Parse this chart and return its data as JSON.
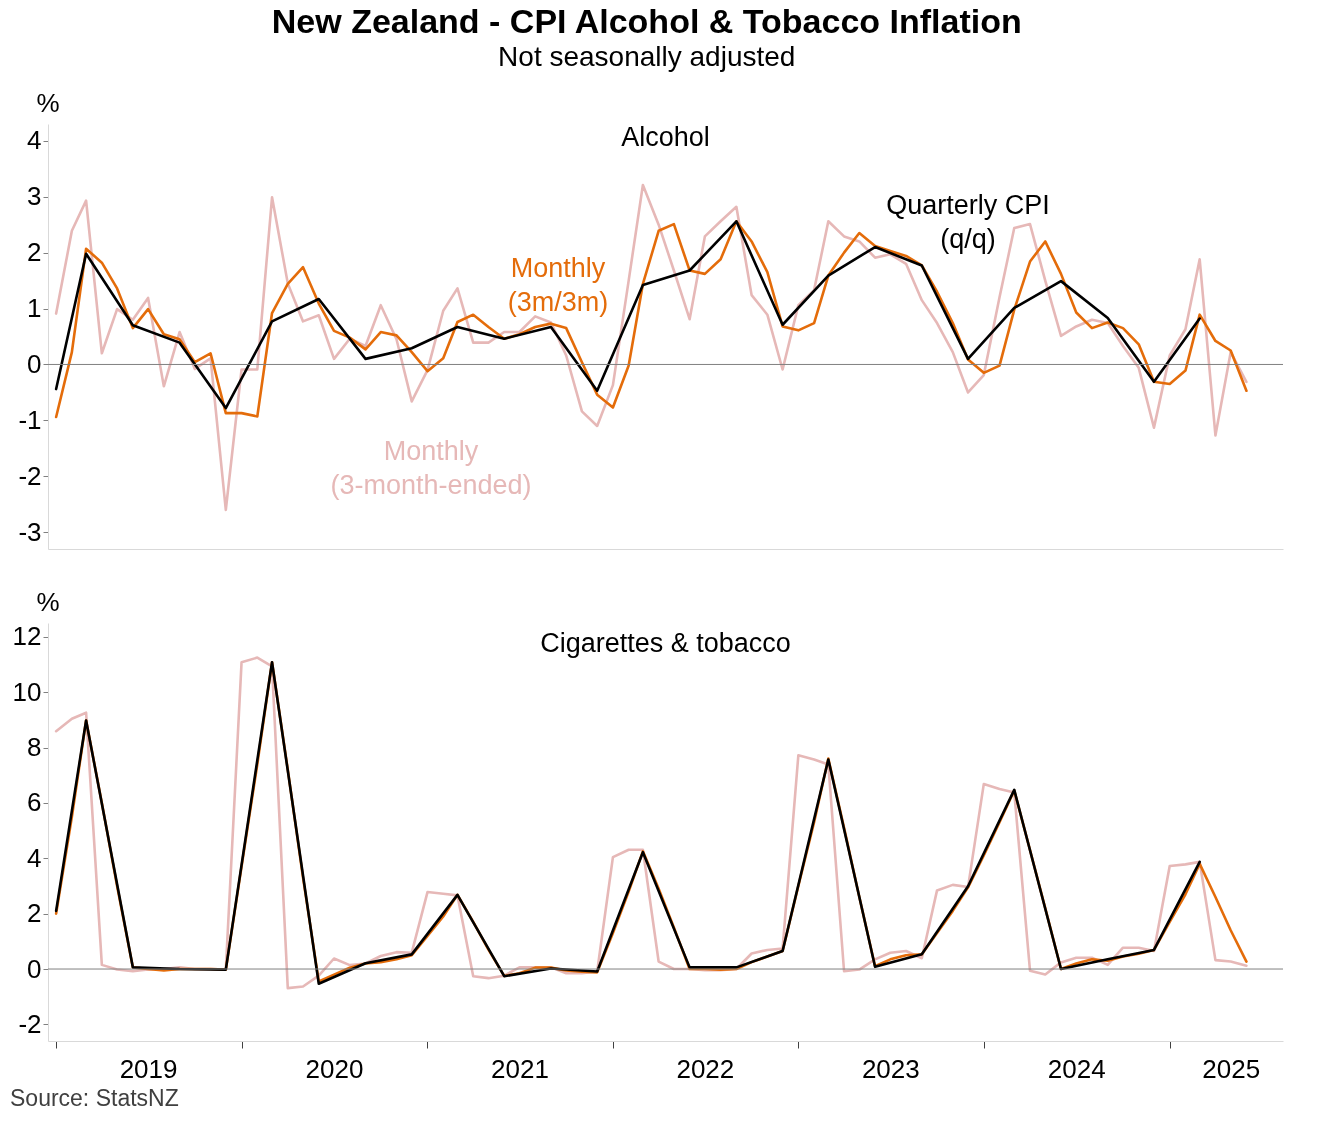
{
  "chart_data": [
    {
      "type": "line",
      "title": "New Zealand - CPI Alcohol & Tobacco Inflation",
      "subtitle": "Not seasonally adjusted",
      "ylabel": "%",
      "annotations": [
        "Alcohol"
      ],
      "tick_labels": "y",
      "xlim": [
        "2018-12-16",
        "2025-08-12"
      ],
      "ylim": [
        -3.3,
        4.3
      ],
      "yticks": [
        -3,
        -2,
        -1,
        0,
        1,
        2,
        3,
        4
      ],
      "ref_lines": [
        {
          "axis": "y",
          "value": 0,
          "color": "#808080"
        }
      ],
      "x": [
        "2019-01",
        "2019-02",
        "2019-03",
        "2019-04",
        "2019-05",
        "2019-06",
        "2019-07",
        "2019-08",
        "2019-09",
        "2019-10",
        "2019-11",
        "2019-12",
        "2020-01",
        "2020-02",
        "2020-03",
        "2020-04",
        "2020-05",
        "2020-06",
        "2020-07",
        "2020-08",
        "2020-09",
        "2020-10",
        "2020-11",
        "2020-12",
        "2021-01",
        "2021-02",
        "2021-03",
        "2021-04",
        "2021-05",
        "2021-06",
        "2021-07",
        "2021-08",
        "2021-09",
        "2021-10",
        "2021-11",
        "2021-12",
        "2022-01",
        "2022-02",
        "2022-03",
        "2022-04",
        "2022-05",
        "2022-06",
        "2022-07",
        "2022-08",
        "2022-09",
        "2022-10",
        "2022-11",
        "2022-12",
        "2023-01",
        "2023-02",
        "2023-03",
        "2023-04",
        "2023-05",
        "2023-06",
        "2023-07",
        "2023-08",
        "2023-09",
        "2023-10",
        "2023-11",
        "2023-12",
        "2024-01",
        "2024-02",
        "2024-03",
        "2024-04",
        "2024-05",
        "2024-06",
        "2024-07",
        "2024-08",
        "2024-09",
        "2024-10",
        "2024-11",
        "2024-12",
        "2025-01",
        "2025-02",
        "2025-03",
        "2025-04",
        "2025-05",
        "2025-06"
      ],
      "series": [
        {
          "name": "Monthly (3-month-ended)",
          "color": "#e6b8b7",
          "values": [
            0.91,
            2.39,
            2.93,
            0.2,
            0.99,
            0.8,
            1.19,
            -0.39,
            0.58,
            -0.08,
            0.11,
            -2.6,
            -0.09,
            -0.09,
            2.99,
            1.45,
            0.77,
            0.88,
            0.1,
            0.46,
            0.33,
            1.06,
            0.45,
            -0.66,
            -0.1,
            0.96,
            1.36,
            0.39,
            0.39,
            0.58,
            0.58,
            0.86,
            0.75,
            0.16,
            -0.84,
            -1.1,
            -0.37,
            1.5,
            3.21,
            2.5,
            1.68,
            0.81,
            2.29,
            2.56,
            2.82,
            1.24,
            0.89,
            -0.09,
            1.06,
            1.33,
            2.56,
            2.29,
            2.2,
            1.91,
            1.97,
            1.8,
            1.15,
            0.74,
            0.22,
            -0.5,
            -0.19,
            1.2,
            2.44,
            2.51,
            1.5,
            0.51,
            0.68,
            0.8,
            0.74,
            0.33,
            -0.06,
            -1.13,
            0.16,
            0.63,
            1.88,
            -1.27,
            0.22,
            -0.31
          ]
        },
        {
          "name": "Monthly (3m/3m)",
          "color": "#e46c0a",
          "values": [
            -0.94,
            0.22,
            2.07,
            1.82,
            1.36,
            0.65,
            0.99,
            0.54,
            0.45,
            0.04,
            0.2,
            -0.87,
            -0.87,
            -0.93,
            0.92,
            1.44,
            1.74,
            1.09,
            0.6,
            0.48,
            0.27,
            0.58,
            0.52,
            0.22,
            -0.12,
            0.11,
            0.76,
            0.89,
            0.67,
            0.46,
            0.54,
            0.67,
            0.73,
            0.65,
            0.04,
            -0.54,
            -0.77,
            -0.02,
            1.44,
            2.39,
            2.51,
            1.68,
            1.62,
            1.88,
            2.56,
            2.2,
            1.65,
            0.68,
            0.61,
            0.74,
            1.59,
            2.0,
            2.35,
            2.12,
            2.03,
            1.94,
            1.77,
            1.3,
            0.74,
            0.09,
            -0.15,
            -0.02,
            0.98,
            1.84,
            2.2,
            1.62,
            0.93,
            0.65,
            0.75,
            0.65,
            0.36,
            -0.31,
            -0.35,
            -0.11,
            0.89,
            0.42,
            0.25,
            -0.47
          ]
        },
        {
          "name": "Quarterly CPI (q/q)",
          "color": "#000000",
          "x": [
            "2019-01",
            "2019-03",
            "2019-06",
            "2019-09",
            "2019-12",
            "2020-03",
            "2020-06",
            "2020-09",
            "2020-12",
            "2021-03",
            "2021-06",
            "2021-09",
            "2021-12",
            "2022-03",
            "2022-06",
            "2022-09",
            "2022-12",
            "2023-03",
            "2023-06",
            "2023-09",
            "2023-12",
            "2024-03",
            "2024-06",
            "2024-09",
            "2024-12",
            "2025-03"
          ],
          "values": [
            -0.44,
            1.98,
            0.7,
            0.39,
            -0.78,
            0.77,
            1.17,
            0.1,
            0.29,
            0.67,
            0.46,
            0.67,
            -0.47,
            1.42,
            1.68,
            2.56,
            0.71,
            1.59,
            2.1,
            1.77,
            0.1,
            1.01,
            1.49,
            0.83,
            -0.31,
            0.82
          ]
        }
      ]
    },
    {
      "type": "line",
      "title": "Cigarettes & tobacco",
      "ylabel": "%",
      "annotations": [
        "Source: StatsNZ"
      ],
      "xlim": [
        "2018-12-16",
        "2025-08-12"
      ],
      "xticks": [
        {
          "value": "2019-01",
          "label": null
        },
        {
          "value": "2019-07",
          "label": "2019"
        },
        {
          "value": "2020-01",
          "label": null
        },
        {
          "value": "2020-07",
          "label": "2020"
        },
        {
          "value": "2021-01",
          "label": null
        },
        {
          "value": "2021-07",
          "label": "2021"
        },
        {
          "value": "2022-01",
          "label": null
        },
        {
          "value": "2022-07",
          "label": "2022"
        },
        {
          "value": "2023-01",
          "label": null
        },
        {
          "value": "2023-07",
          "label": "2023"
        },
        {
          "value": "2024-01",
          "label": null
        },
        {
          "value": "2024-07",
          "label": "2024"
        },
        {
          "value": "2025-01",
          "label": null
        },
        {
          "value": "2025-05",
          "label": "2025"
        }
      ],
      "ylim": [
        -2.6,
        12.5
      ],
      "yticks": [
        -2,
        0,
        2,
        4,
        6,
        8,
        10,
        12
      ],
      "ref_lines": [
        {
          "axis": "y",
          "value": 0,
          "color": "#808080"
        }
      ],
      "x": [
        "2019-01",
        "2019-02",
        "2019-03",
        "2019-04",
        "2019-05",
        "2019-06",
        "2019-07",
        "2019-08",
        "2019-09",
        "2019-10",
        "2019-11",
        "2019-12",
        "2020-01",
        "2020-02",
        "2020-03",
        "2020-04",
        "2020-05",
        "2020-06",
        "2020-07",
        "2020-08",
        "2020-09",
        "2020-10",
        "2020-11",
        "2020-12",
        "2021-01",
        "2021-02",
        "2021-03",
        "2021-04",
        "2021-05",
        "2021-06",
        "2021-07",
        "2021-08",
        "2021-09",
        "2021-10",
        "2021-11",
        "2021-12",
        "2022-01",
        "2022-02",
        "2022-03",
        "2022-04",
        "2022-05",
        "2022-06",
        "2022-07",
        "2022-08",
        "2022-09",
        "2022-10",
        "2022-11",
        "2022-12",
        "2023-01",
        "2023-02",
        "2023-03",
        "2023-04",
        "2023-05",
        "2023-06",
        "2023-07",
        "2023-08",
        "2023-09",
        "2023-10",
        "2023-11",
        "2023-12",
        "2024-01",
        "2024-02",
        "2024-03",
        "2024-04",
        "2024-05",
        "2024-06",
        "2024-07",
        "2024-08",
        "2024-09",
        "2024-10",
        "2024-11",
        "2024-12",
        "2025-01",
        "2025-02",
        "2025-03",
        "2025-04",
        "2025-05",
        "2025-06"
      ],
      "series": [
        {
          "color": "#e6b8b7",
          "values": [
            8.59,
            9.04,
            9.26,
            0.15,
            -0.02,
            -0.08,
            -0.02,
            0,
            0.06,
            0,
            0,
            -0.02,
            11.08,
            11.25,
            10.93,
            -0.69,
            -0.63,
            -0.24,
            0.38,
            0.14,
            0.2,
            0.47,
            0.61,
            0.59,
            2.78,
            2.72,
            2.66,
            -0.26,
            -0.33,
            -0.24,
            0.06,
            0.06,
            0.06,
            -0.15,
            -0.15,
            -0.09,
            4.04,
            4.31,
            4.31,
            0.27,
            0,
            0,
            -0.04,
            -0.04,
            0,
            0.56,
            0.69,
            0.74,
            7.72,
            7.57,
            7.39,
            -0.08,
            -0.02,
            0.35,
            0.59,
            0.65,
            0.39,
            2.84,
            3.04,
            2.96,
            6.68,
            6.5,
            6.38,
            -0.06,
            -0.2,
            0.24,
            0.41,
            0.41,
            0.15,
            0.77,
            0.77,
            0.65,
            3.72,
            3.78,
            3.87,
            0.32,
            0.27,
            0.12
          ]
        },
        {
          "color": "#e46c0a",
          "values": [
            2.0,
            5.5,
            8.98,
            6.0,
            3.0,
            0.06,
            0,
            -0.05,
            0,
            0,
            0,
            -0.02,
            3.7,
            7.4,
            11.08,
            7.2,
            3.3,
            -0.45,
            -0.2,
            0.05,
            0.2,
            0.25,
            0.35,
            0.5,
            1.2,
            1.9,
            2.68,
            1.7,
            0.7,
            -0.25,
            -0.15,
            0.05,
            0.05,
            -0.05,
            -0.1,
            -0.12,
            1.3,
            2.8,
            4.25,
            2.9,
            1.5,
            0,
            0,
            -0.02,
            0,
            0.25,
            0.45,
            0.65,
            3.0,
            5.3,
            7.6,
            5.1,
            2.6,
            0.1,
            0.35,
            0.5,
            0.53,
            1.3,
            2.1,
            2.95,
            4.1,
            5.3,
            6.45,
            4.3,
            2.2,
            0,
            0.2,
            0.35,
            0.3,
            0.45,
            0.55,
            0.69,
            1.7,
            2.7,
            3.8,
            2.6,
            1.4,
            0.27
          ]
        },
        {
          "color": "#000000",
          "x": [
            "2019-01",
            "2019-03",
            "2019-06",
            "2019-09",
            "2019-12",
            "2020-03",
            "2020-06",
            "2020-09",
            "2020-12",
            "2021-03",
            "2021-06",
            "2021-09",
            "2021-12",
            "2022-03",
            "2022-06",
            "2022-09",
            "2022-12",
            "2023-03",
            "2023-06",
            "2023-09",
            "2023-12",
            "2024-03",
            "2024-06",
            "2024-09",
            "2024-12",
            "2025-03"
          ],
          "values": [
            2.1,
            8.98,
            0.06,
            0,
            -0.02,
            11.08,
            -0.53,
            0.21,
            0.53,
            2.68,
            -0.26,
            0.02,
            -0.09,
            4.22,
            0.06,
            0.06,
            0.65,
            7.57,
            0.08,
            0.53,
            2.99,
            6.47,
            0,
            0.35,
            0.69,
            3.87
          ]
        }
      ]
    }
  ]
}
